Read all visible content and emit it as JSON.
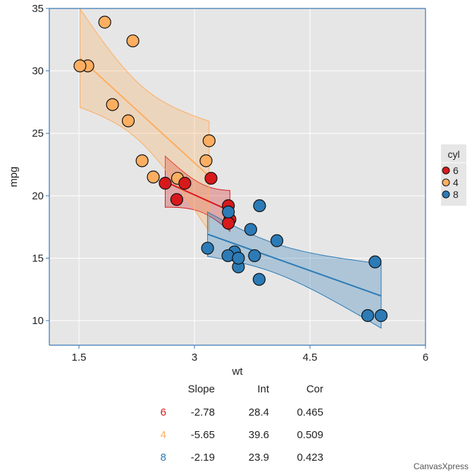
{
  "chart_data": {
    "type": "scatter",
    "title": "",
    "xlabel": "wt",
    "ylabel": "mpg",
    "xlim": [
      1.115,
      6.0
    ],
    "ylim": [
      8.03,
      35.0
    ],
    "xticks": [
      1.5,
      3,
      4.5,
      6
    ],
    "xtick_labels": [
      "1.5",
      "3",
      "4.5",
      "6"
    ],
    "yticks": [
      10,
      15,
      20,
      25,
      30,
      35
    ],
    "ytick_labels": [
      "10",
      "15",
      "20",
      "25",
      "30",
      "35"
    ],
    "grid": true,
    "legend": {
      "title": "cyl",
      "placement": "right",
      "entries": [
        "6",
        "4",
        "8"
      ]
    },
    "series": [
      {
        "name": "6",
        "color": "#D7191C",
        "points": [
          [
            2.62,
            21.0
          ],
          [
            2.875,
            21.0
          ],
          [
            3.215,
            21.4
          ],
          [
            3.46,
            18.1
          ],
          [
            3.44,
            19.2
          ],
          [
            3.44,
            17.8
          ],
          [
            2.77,
            19.7
          ]
        ]
      },
      {
        "name": "4",
        "color": "#FDAE61",
        "points": [
          [
            2.32,
            22.8
          ],
          [
            3.19,
            24.4
          ],
          [
            3.15,
            22.8
          ],
          [
            2.2,
            32.4
          ],
          [
            1.615,
            30.4
          ],
          [
            1.835,
            33.9
          ],
          [
            2.465,
            21.5
          ],
          [
            1.935,
            27.3
          ],
          [
            2.14,
            26.0
          ],
          [
            1.513,
            30.4
          ],
          [
            2.78,
            21.4
          ]
        ]
      },
      {
        "name": "8",
        "color": "#2C7BB6",
        "points": [
          [
            3.44,
            18.7
          ],
          [
            3.57,
            14.3
          ],
          [
            4.07,
            16.4
          ],
          [
            3.73,
            17.3
          ],
          [
            3.78,
            15.2
          ],
          [
            5.25,
            10.4
          ],
          [
            5.424,
            10.4
          ],
          [
            5.345,
            14.7
          ],
          [
            3.52,
            15.5
          ],
          [
            3.435,
            15.2
          ],
          [
            3.84,
            13.3
          ],
          [
            3.845,
            19.2
          ],
          [
            3.17,
            15.8
          ],
          [
            3.57,
            15.0
          ]
        ]
      }
    ],
    "regression": {
      "columns": [
        "Slope",
        "Int",
        "Cor"
      ],
      "rows": [
        {
          "group": "6",
          "color": "#D7191C",
          "values": [
            "-2.78",
            "28.4",
            "0.465"
          ]
        },
        {
          "group": "4",
          "color": "#FDAE61",
          "values": [
            "-5.65",
            "39.6",
            "0.509"
          ]
        },
        {
          "group": "8",
          "color": "#2C7BB6",
          "values": [
            "-2.19",
            "23.9",
            "0.423"
          ]
        }
      ]
    },
    "confidence_band": true,
    "credit": "CanvasXpress"
  }
}
